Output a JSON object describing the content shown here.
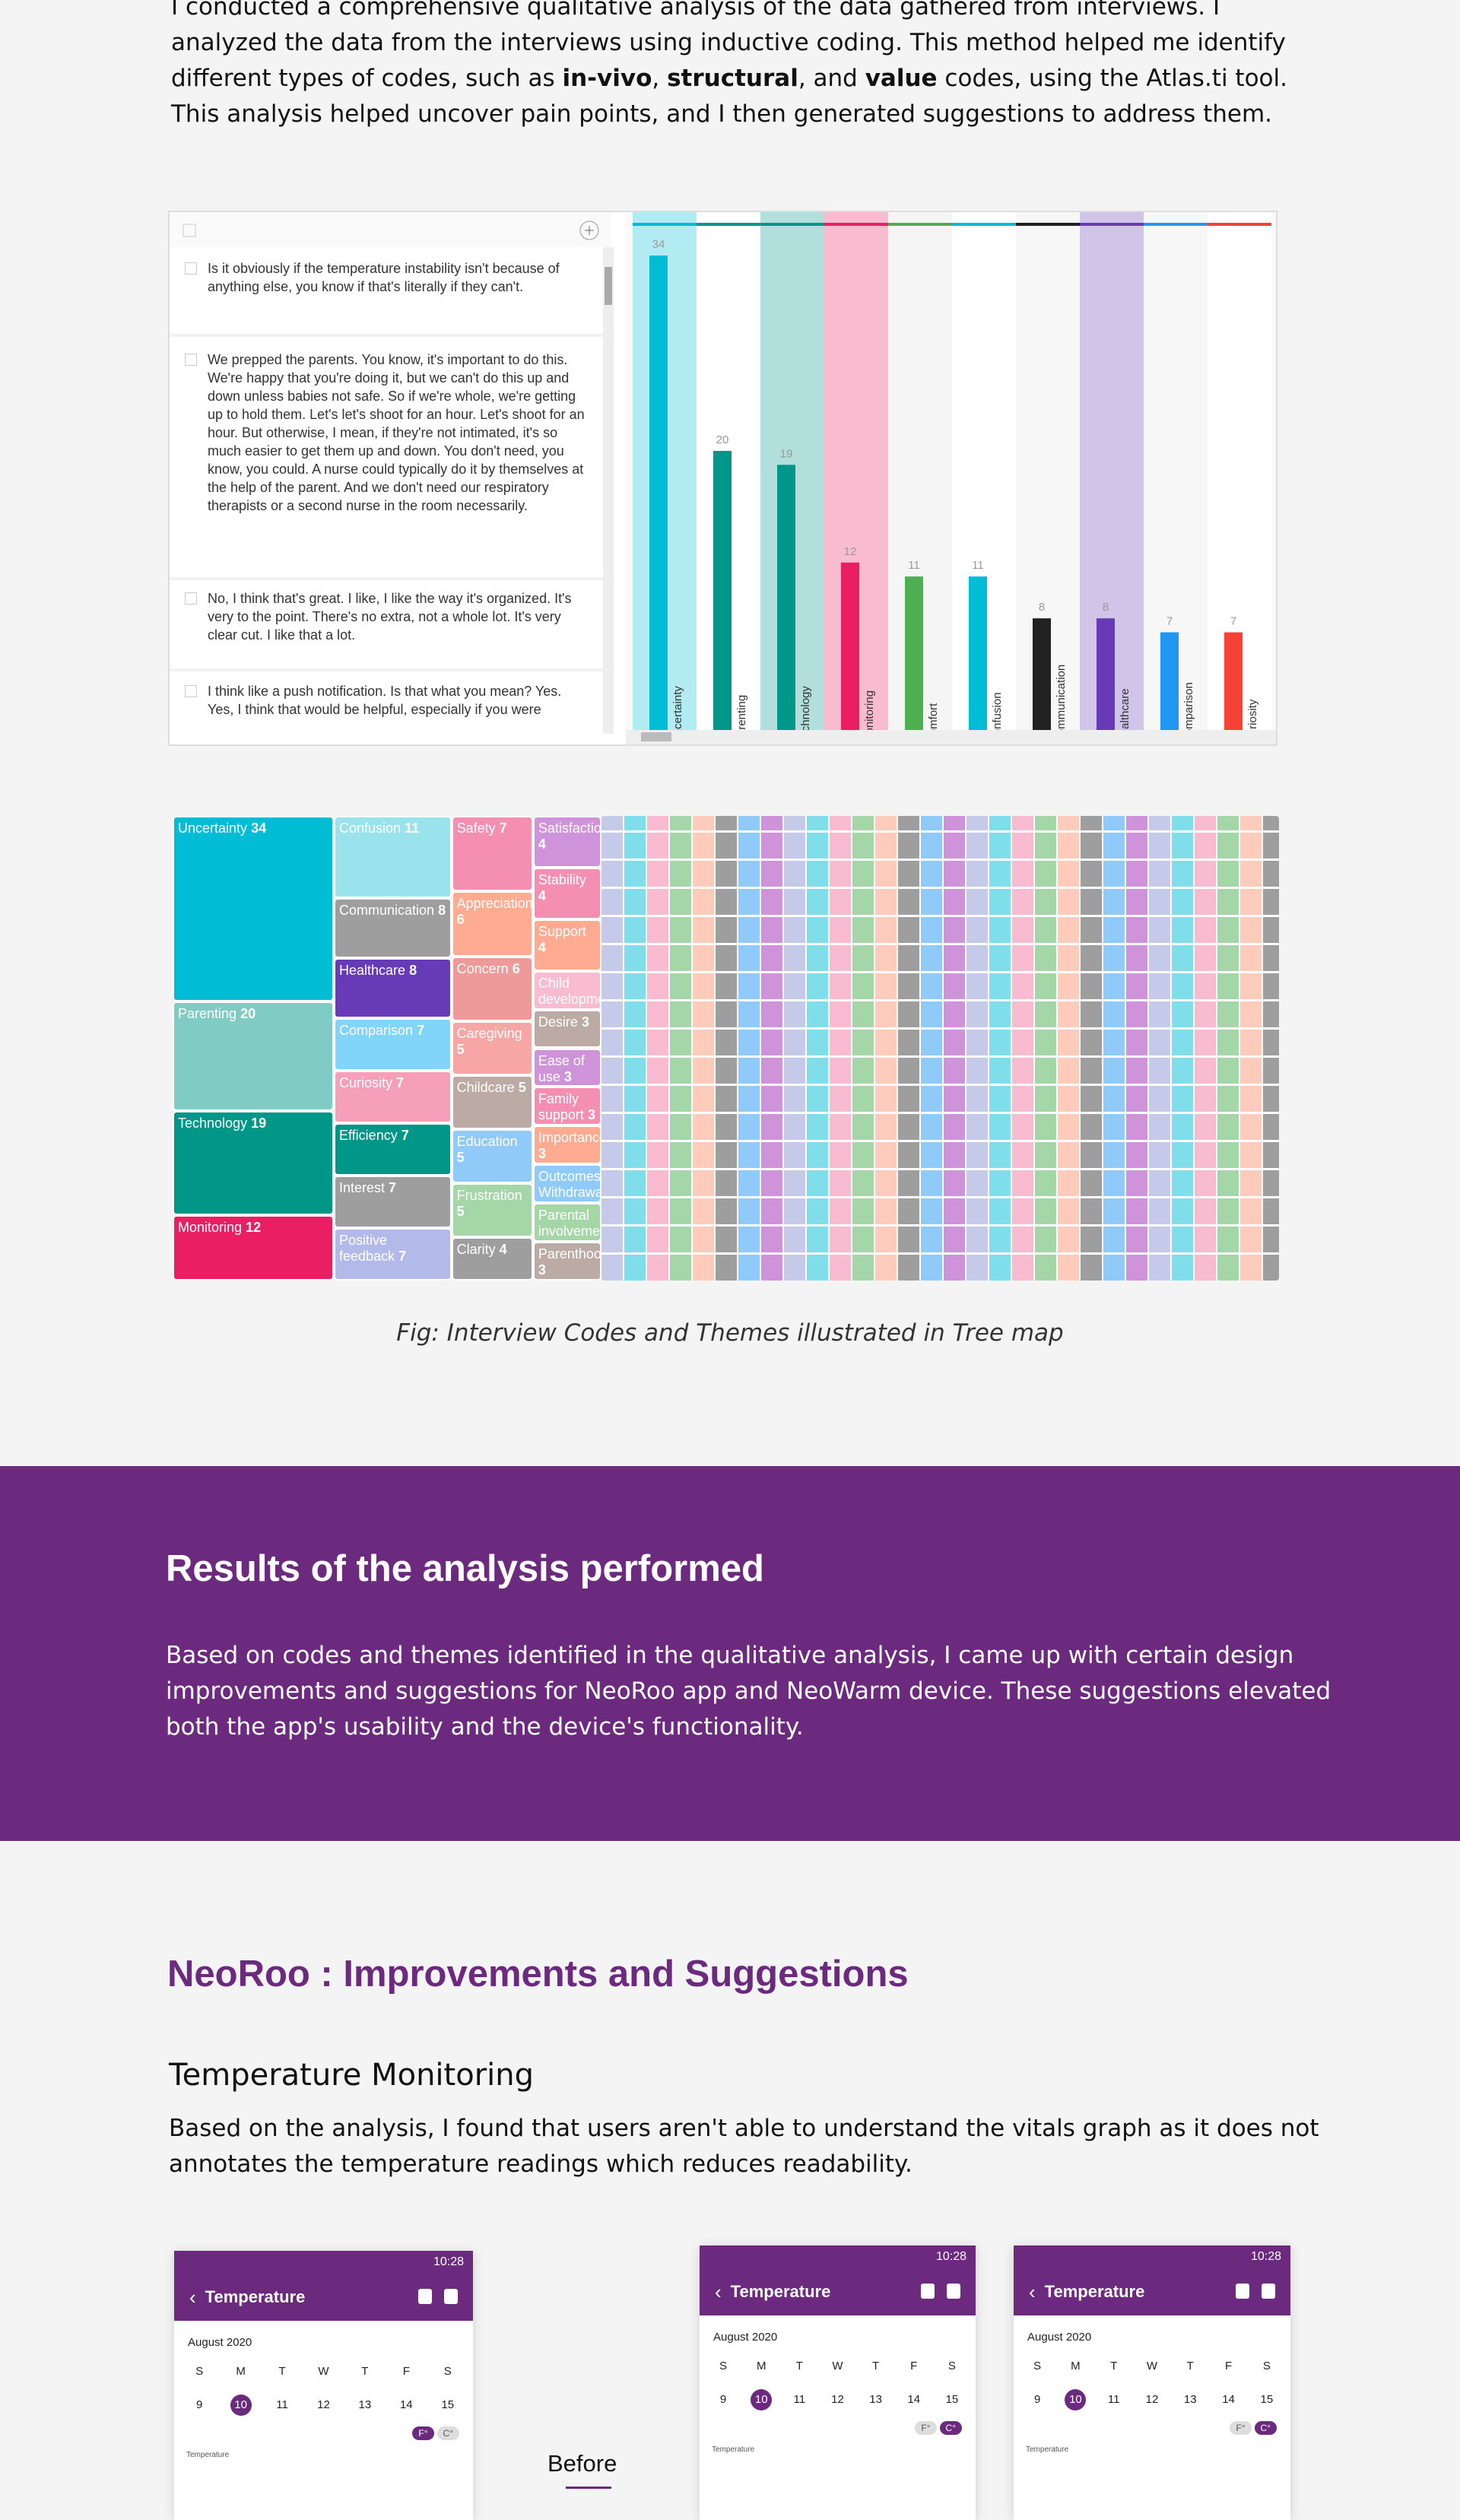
{
  "intro": [
    "I conducted a comprehensive qualitative analysis of the data gathered from interviews. I analyzed the data from the interviews using inductive coding. This method helped me identify different types of codes, such as ",
    "in-vivo",
    ", ",
    "structural",
    ", and ",
    "value",
    " codes, using the Atlas.ti tool. This analysis helped uncover pain points, and I then generated suggestions to address them."
  ],
  "quotes": [
    "Is it obviously if the temperature instability isn't because of anything else, you know if that's literally if they can't.",
    "We prepped the parents. You know, it's important to do this. We're happy that you're doing it, but we can't do this up and down unless babies not safe. So if we're whole, we're getting up to hold them. Let's let's shoot for an hour. Let's shoot for an hour. But otherwise, I mean, if they're not intimated, it's so much easier to get them up and down. You don't need, you know, you could. A nurse could typically do it by themselves at the help of the parent. And we don't need our respiratory therapists or a second nurse in the room necessarily.",
    "No, I think that's great. I like, I like the way it's organized. It's very to the point. There's no extra, not a whole lot. It's very clear cut. I like that a lot.",
    "I think like a push notification. Is that what you mean? Yes. Yes, I think that would be helpful, especially if you were"
  ],
  "chart_data": [
    {
      "type": "bar",
      "categories": [
        "Uncertainty",
        "Parenting",
        "Technology",
        "Monitoring",
        "Comfort",
        "Confusion",
        "Communication",
        "Healthcare",
        "Comparison",
        "Curiosity"
      ],
      "values": [
        34,
        20,
        19,
        12,
        11,
        11,
        8,
        8,
        7,
        7
      ],
      "colors": [
        "#00bcd4",
        "#009688",
        "#009688",
        "#e91e63",
        "#4caf50",
        "#00bcd4",
        "#212121",
        "#673ab7",
        "#2196f3",
        "#f44336"
      ],
      "band_colors": [
        "#b2ebf2",
        "#ffffff",
        "#b2dfdb",
        "#f8bbd0",
        "#f5f5f5",
        "#ffffff",
        "#f7f7f7",
        "#d1c4e9",
        "#f7f7f7",
        "#ffffff"
      ]
    },
    {
      "type": "treemap",
      "items": [
        {
          "name": "Uncertainty",
          "value": 34,
          "color": "#00bcd4"
        },
        {
          "name": "Parenting",
          "value": 20,
          "color": "#80cbc4"
        },
        {
          "name": "Technology",
          "value": 19,
          "color": "#009688"
        },
        {
          "name": "Monitoring",
          "value": 12,
          "color": "#e91e63"
        },
        {
          "name": "Confusion",
          "value": 11,
          "color": "#9ae3ec"
        },
        {
          "name": "Communication",
          "value": 8,
          "color": "#9e9e9e"
        },
        {
          "name": "Healthcare",
          "value": 8,
          "color": "#673ab7"
        },
        {
          "name": "Comparison",
          "value": 7,
          "color": "#81d4fa"
        },
        {
          "name": "Curiosity",
          "value": 7,
          "color": "#f5a0b8"
        },
        {
          "name": "Efficiency",
          "value": 7,
          "color": "#009688"
        },
        {
          "name": "Interest",
          "value": 7,
          "color": "#9e9e9e"
        },
        {
          "name": "Positive feedback",
          "value": 7,
          "color": "#b3b9e8"
        },
        {
          "name": "Safety",
          "value": 7,
          "color": "#f48fb1"
        },
        {
          "name": "Appreciation",
          "value": 6,
          "color": "#ffab91"
        },
        {
          "name": "Concern",
          "value": 6,
          "color": "#ef9a9a"
        },
        {
          "name": "Caregiving",
          "value": 5,
          "color": "#f8a5a5"
        },
        {
          "name": "Childcare",
          "value": 5,
          "color": "#bcaaa4"
        },
        {
          "name": "Education",
          "value": 5,
          "color": "#90caf9"
        },
        {
          "name": "Frustration",
          "value": 5,
          "color": "#a5d6a7"
        },
        {
          "name": "Clarity",
          "value": 4,
          "color": "#9e9e9e"
        },
        {
          "name": "Satisfaction",
          "value": 4,
          "color": "#ce93d8"
        },
        {
          "name": "Stability",
          "value": 4,
          "color": "#f48fb1"
        },
        {
          "name": "Support",
          "value": 4,
          "color": "#ffab91"
        },
        {
          "name": "Child development",
          "value": 3,
          "color": "#f8bbd0"
        },
        {
          "name": "Desire",
          "value": 3,
          "color": "#bcaaa4"
        },
        {
          "name": "Ease of use",
          "value": 3,
          "color": "#ce93d8"
        },
        {
          "name": "Family support",
          "value": 3,
          "color": "#f48fb1"
        },
        {
          "name": "Importance",
          "value": 3,
          "color": "#ffab91"
        },
        {
          "name": "Outcomes/ Withdrawal",
          "value": 3,
          "color": "#90caf9"
        },
        {
          "name": "Parental involvement",
          "value": 3,
          "color": "#a5d6a7"
        },
        {
          "name": "Parenthood",
          "value": 3,
          "color": "#bcaaa4"
        }
      ]
    }
  ],
  "caption": "Fig: Interview Codes and Themes illustrated in Tree map",
  "results": {
    "title": "Results of the analysis performed",
    "text": "Based on codes and themes identified in the qualitative analysis, I came up with certain design improvements and suggestions for NeoRoo app and NeoWarm device. These suggestions elevated both the app's usability and the device's functionality."
  },
  "improvements": {
    "title": "NeoRoo : Improvements and Suggestions",
    "subtitle": "Temperature Monitoring",
    "text": "Based on the analysis, I found that users aren't able to understand the vitals graph as it does not annotates the temperature readings which reduces readability."
  },
  "phone_screen": {
    "time": "10:28",
    "title": "Temperature",
    "month": "August 2020",
    "weekdays": [
      "S",
      "M",
      "T",
      "W",
      "T",
      "F",
      "S"
    ],
    "dates": [
      "9",
      "10",
      "11",
      "12",
      "13",
      "14",
      "15"
    ],
    "units": [
      "F°",
      "C°"
    ],
    "chart_label": "Temperature"
  },
  "before_label": "Before"
}
